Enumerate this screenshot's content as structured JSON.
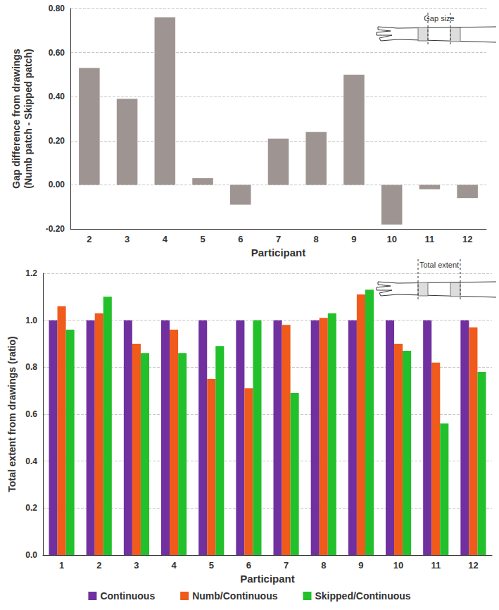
{
  "chart_data": [
    {
      "type": "bar",
      "categories": [
        "2",
        "3",
        "4",
        "5",
        "6",
        "7",
        "8",
        "9",
        "10",
        "11",
        "12"
      ],
      "values": [
        0.53,
        0.39,
        0.76,
        0.03,
        -0.09,
        0.21,
        0.24,
        0.5,
        -0.18,
        -0.02,
        -0.06
      ],
      "color": "#9e9592",
      "xlabel": "Participant",
      "ylabel": "Gap difference from drawings\n(Numb patch - Skipped patch)",
      "annotation": "Gap size",
      "ylim": [
        -0.2,
        0.8
      ],
      "yticks": [
        {
          "value": -0.2,
          "label": "-0.20"
        },
        {
          "value": 0,
          "label": "0.00"
        },
        {
          "value": 0.2,
          "label": "0.20"
        },
        {
          "value": 0.4,
          "label": "0.40"
        },
        {
          "value": 0.6,
          "label": "0.60"
        },
        {
          "value": 0.8,
          "label": "0.80"
        }
      ],
      "grid": true
    },
    {
      "type": "bar",
      "categories": [
        "1",
        "2",
        "3",
        "4",
        "5",
        "6",
        "7",
        "8",
        "9",
        "10",
        "11",
        "12"
      ],
      "series": [
        {
          "name": "Continuous",
          "color": "#7030a0",
          "values": [
            1.0,
            1.0,
            1.0,
            1.0,
            1.0,
            1.0,
            1.0,
            1.0,
            1.0,
            1.0,
            1.0,
            1.0
          ]
        },
        {
          "name": "Numb/Continuous",
          "color": "#f05a1a",
          "values": [
            1.06,
            1.03,
            0.9,
            0.96,
            0.75,
            0.71,
            0.98,
            1.01,
            1.11,
            0.9,
            0.82,
            0.97
          ]
        },
        {
          "name": "Skipped/Continuous",
          "color": "#22c02a",
          "values": [
            0.96,
            1.1,
            0.86,
            0.86,
            0.89,
            1.0,
            0.69,
            1.03,
            1.13,
            0.87,
            0.56,
            0.78
          ]
        }
      ],
      "xlabel": "Participant",
      "ylabel": "Total extent from drawings (ratio)",
      "annotation": "Total extent",
      "ylim": [
        0,
        1.2
      ],
      "yticks": [
        {
          "value": 0,
          "label": "0.0"
        },
        0.2,
        0.4,
        0.6,
        0.8,
        {
          "value": 1,
          "label": "1.0"
        },
        1.2
      ],
      "grid": true,
      "legend": "bottom"
    }
  ]
}
